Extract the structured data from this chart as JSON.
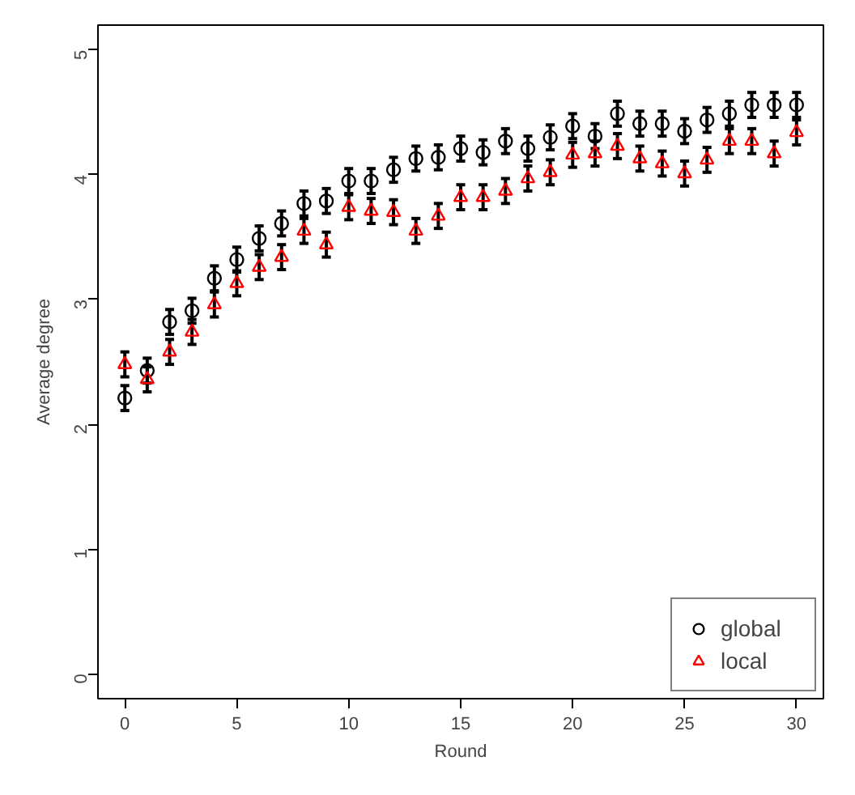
{
  "chart_data": {
    "type": "scatter",
    "xlabel": "Round",
    "ylabel": "Average degree",
    "x": [
      0,
      1,
      2,
      3,
      4,
      5,
      6,
      7,
      8,
      9,
      10,
      11,
      12,
      13,
      14,
      15,
      16,
      17,
      18,
      19,
      20,
      21,
      22,
      23,
      24,
      25,
      26,
      27,
      28,
      29,
      30
    ],
    "series": [
      {
        "name": "global",
        "color": "#000000",
        "marker": "circle",
        "values": [
          2.21,
          2.43,
          2.82,
          2.91,
          3.17,
          3.32,
          3.49,
          3.61,
          3.77,
          3.79,
          3.95,
          3.95,
          4.04,
          4.13,
          4.14,
          4.21,
          4.18,
          4.27,
          4.21,
          4.3,
          4.39,
          4.31,
          4.49,
          4.41,
          4.41,
          4.35,
          4.44,
          4.49,
          4.56,
          4.56,
          4.56
        ],
        "errors": [
          0.1,
          0.1,
          0.1,
          0.1,
          0.1,
          0.1,
          0.1,
          0.1,
          0.1,
          0.1,
          0.1,
          0.1,
          0.1,
          0.1,
          0.1,
          0.1,
          0.1,
          0.1,
          0.1,
          0.1,
          0.1,
          0.1,
          0.1,
          0.1,
          0.1,
          0.1,
          0.1,
          0.1,
          0.1,
          0.1,
          0.1
        ]
      },
      {
        "name": "local",
        "color": "#ff0000",
        "marker": "triangle",
        "values": [
          2.48,
          2.36,
          2.58,
          2.74,
          2.96,
          3.13,
          3.26,
          3.34,
          3.55,
          3.44,
          3.74,
          3.71,
          3.7,
          3.55,
          3.67,
          3.82,
          3.82,
          3.87,
          3.97,
          4.02,
          4.16,
          4.17,
          4.23,
          4.13,
          4.09,
          4.01,
          4.12,
          4.27,
          4.27,
          4.17,
          4.34
        ],
        "errors": [
          0.1,
          0.1,
          0.1,
          0.1,
          0.1,
          0.1,
          0.1,
          0.1,
          0.1,
          0.1,
          0.1,
          0.1,
          0.1,
          0.1,
          0.1,
          0.1,
          0.1,
          0.1,
          0.1,
          0.1,
          0.1,
          0.1,
          0.1,
          0.1,
          0.1,
          0.1,
          0.1,
          0.1,
          0.1,
          0.1,
          0.1
        ]
      }
    ],
    "xlim": [
      -1.2,
      31.2
    ],
    "ylim": [
      -0.2,
      5.2
    ],
    "xticks": [
      0,
      5,
      10,
      15,
      20,
      25,
      30
    ],
    "yticks": [
      0,
      1,
      2,
      3,
      4,
      5
    ],
    "grid": false,
    "legend": "bottom right"
  }
}
